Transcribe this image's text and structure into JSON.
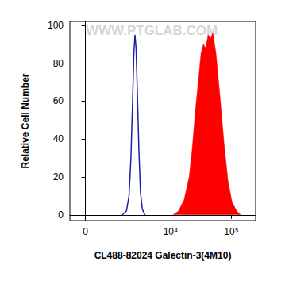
{
  "chart_data": {
    "type": "histogram",
    "x_label": "CL488-82024 Galectin-3(4M10)",
    "y_label": "Relative Cell Number",
    "annotations": [
      "WWW.PTGLAB.COM"
    ],
    "xlim": [
      -500,
      250000
    ],
    "xticks": [
      0,
      {
        "value": 10000,
        "label": "10⁴"
      },
      {
        "value": 100000,
        "label": "10⁵"
      }
    ],
    "ylim": [
      -3,
      102
    ],
    "yticks": [
      0,
      20,
      40,
      60,
      80,
      100
    ],
    "grid": false,
    "series": [
      {
        "type": "line",
        "color": "#2020a8",
        "x": [
          1520,
          1800,
          2000,
          2160,
          2310,
          2430,
          2540,
          2650,
          2790,
          2960,
          3150,
          3390,
          3750
        ],
        "values": [
          0,
          2,
          10,
          30,
          60,
          85,
          95,
          88,
          65,
          35,
          12,
          3,
          0
        ]
      },
      {
        "type": "area",
        "color": "#ff0000",
        "x": [
          10950,
          13500,
          16700,
          20200,
          22700,
          25600,
          28900,
          31600,
          34600,
          37800,
          41400,
          45300,
          49600,
          55900,
          65000,
          75500,
          87700,
          101900,
          122000,
          141700
        ],
        "values": [
          0,
          2,
          8,
          20,
          35,
          55,
          72,
          85,
          90,
          88,
          95,
          93,
          96,
          85,
          62,
          38,
          18,
          7,
          2,
          0
        ]
      }
    ]
  }
}
